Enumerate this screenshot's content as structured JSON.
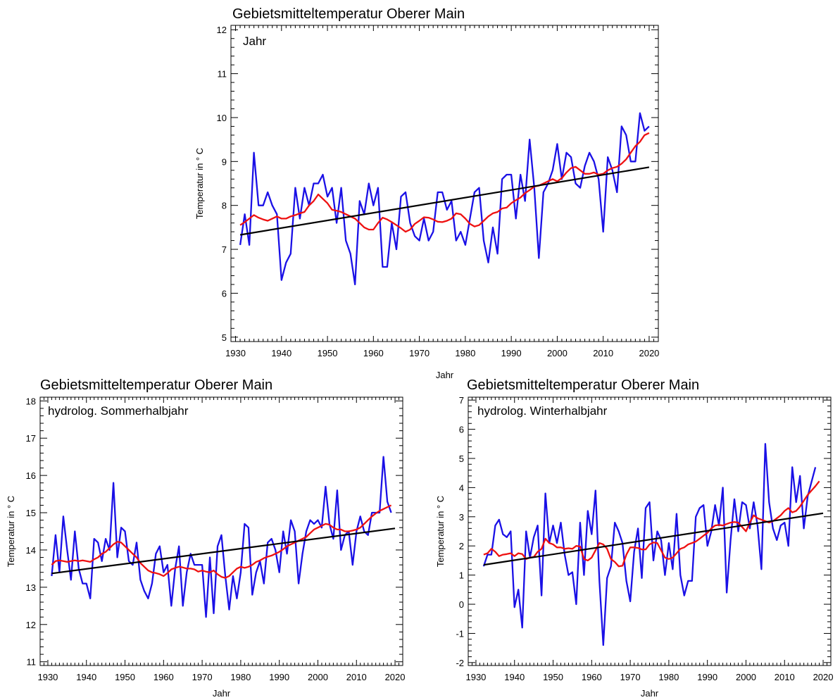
{
  "chart_data": [
    {
      "id": "annual",
      "type": "line",
      "title": "Gebietsmitteltemperatur Oberer Main",
      "panel_label": "Jahr",
      "xlabel": "Jahr",
      "ylabel": "Temperatur in ° C",
      "xlim": [
        1929,
        2022
      ],
      "ylim": [
        4.9,
        12.1
      ],
      "xticks": [
        1930,
        1940,
        1950,
        1960,
        1970,
        1980,
        1990,
        2000,
        2010,
        2020
      ],
      "yticks": [
        5,
        6,
        7,
        8,
        9,
        10,
        11,
        12
      ],
      "grid": false,
      "series": [
        {
          "role": "annual",
          "color": "#1a10e6",
          "x_start": 1931,
          "values": [
            7.1,
            7.8,
            7.1,
            9.2,
            8.0,
            8.0,
            8.3,
            8.0,
            7.8,
            6.3,
            6.7,
            6.9,
            8.4,
            7.7,
            8.4,
            8.0,
            8.5,
            8.5,
            8.7,
            8.2,
            8.4,
            7.6,
            8.4,
            7.2,
            6.9,
            6.2,
            8.1,
            7.8,
            8.5,
            8.0,
            8.4,
            6.6,
            6.6,
            7.6,
            7.0,
            8.2,
            8.3,
            7.6,
            7.3,
            7.2,
            7.7,
            7.2,
            7.4,
            8.3,
            8.3,
            7.9,
            8.1,
            7.2,
            7.4,
            7.1,
            7.7,
            8.3,
            8.4,
            7.2,
            6.7,
            7.5,
            6.9,
            8.6,
            8.7,
            8.7,
            7.7,
            8.7,
            8.1,
            9.5,
            8.4,
            6.8,
            8.3,
            8.5,
            8.8,
            9.4,
            8.6,
            9.2,
            9.1,
            8.5,
            8.4,
            8.9,
            9.2,
            9.0,
            8.6,
            7.4,
            9.1,
            8.8,
            8.3,
            9.8,
            9.6,
            9.0,
            9.0,
            10.1,
            9.7,
            9.8
          ]
        },
        {
          "role": "moving-average",
          "color": "#ee1111",
          "x_start": 1931,
          "values": [
            7.55,
            7.62,
            7.7,
            7.78,
            7.72,
            7.68,
            7.65,
            7.7,
            7.75,
            7.7,
            7.7,
            7.75,
            7.78,
            7.82,
            7.85,
            8.0,
            8.1,
            8.25,
            8.15,
            8.05,
            7.9,
            7.88,
            7.85,
            7.8,
            7.75,
            7.7,
            7.6,
            7.5,
            7.45,
            7.45,
            7.6,
            7.72,
            7.68,
            7.62,
            7.55,
            7.48,
            7.4,
            7.45,
            7.58,
            7.65,
            7.73,
            7.72,
            7.68,
            7.63,
            7.62,
            7.65,
            7.7,
            7.82,
            7.8,
            7.7,
            7.58,
            7.52,
            7.55,
            7.65,
            7.75,
            7.82,
            7.85,
            7.93,
            7.95,
            8.05,
            8.12,
            8.18,
            8.28,
            8.35,
            8.43,
            8.45,
            8.5,
            8.55,
            8.6,
            8.55,
            8.62,
            8.75,
            8.85,
            8.88,
            8.8,
            8.72,
            8.72,
            8.75,
            8.7,
            8.72,
            8.8,
            8.85,
            8.88,
            8.95,
            9.05,
            9.2,
            9.35,
            9.45,
            9.6,
            9.65
          ]
        },
        {
          "role": "linear-trend",
          "color": "#000000",
          "x": [
            1931,
            2020
          ],
          "y": [
            7.33,
            8.87
          ]
        }
      ]
    },
    {
      "id": "summer",
      "type": "line",
      "title": "Gebietsmitteltemperatur Oberer Main",
      "panel_label": "hydrolog. Sommerhalbjahr",
      "xlabel": "Jahr",
      "ylabel": "Temperatur in ° C",
      "xlim": [
        1928,
        2022
      ],
      "ylim": [
        10.9,
        18.1
      ],
      "xticks": [
        1930,
        1940,
        1950,
        1960,
        1970,
        1980,
        1990,
        2000,
        2010,
        2020
      ],
      "yticks": [
        11,
        12,
        13,
        14,
        15,
        16,
        17,
        18
      ],
      "grid": false,
      "series": [
        {
          "role": "annual",
          "color": "#1a10e6",
          "x_start": 1931,
          "values": [
            13.3,
            14.4,
            13.4,
            14.9,
            14.0,
            13.2,
            14.5,
            13.5,
            13.1,
            13.1,
            12.7,
            14.3,
            14.2,
            13.7,
            14.3,
            14.0,
            15.8,
            13.8,
            14.6,
            14.5,
            13.7,
            13.6,
            14.2,
            13.2,
            12.9,
            12.7,
            13.1,
            13.9,
            14.1,
            13.4,
            13.6,
            12.5,
            13.5,
            14.1,
            12.5,
            13.4,
            13.9,
            13.6,
            13.6,
            13.6,
            12.2,
            13.8,
            12.3,
            14.1,
            14.4,
            13.3,
            12.4,
            13.3,
            12.7,
            13.4,
            14.7,
            14.6,
            12.8,
            13.4,
            13.7,
            13.1,
            14.2,
            14.3,
            14.0,
            13.4,
            14.5,
            13.9,
            14.8,
            14.5,
            13.1,
            13.9,
            14.5,
            14.8,
            14.7,
            14.8,
            14.6,
            15.7,
            14.7,
            14.3,
            15.6,
            14.0,
            14.4,
            14.5,
            13.6,
            14.5,
            14.9,
            14.5,
            14.4,
            15.0,
            15.0,
            15.0,
            16.5,
            15.3,
            15.0
          ]
        },
        {
          "role": "moving-average",
          "color": "#ee1111",
          "x_start": 1931,
          "values": [
            13.6,
            13.7,
            13.72,
            13.7,
            13.68,
            13.7,
            13.72,
            13.7,
            13.72,
            13.7,
            13.68,
            13.75,
            13.8,
            13.9,
            13.95,
            14.05,
            14.15,
            14.22,
            14.2,
            14.1,
            14.0,
            13.9,
            13.8,
            13.65,
            13.55,
            13.45,
            13.4,
            13.38,
            13.35,
            13.3,
            13.38,
            13.48,
            13.52,
            13.55,
            13.53,
            13.5,
            13.5,
            13.48,
            13.42,
            13.45,
            13.42,
            13.4,
            13.45,
            13.35,
            13.28,
            13.25,
            13.3,
            13.4,
            13.5,
            13.55,
            13.52,
            13.55,
            13.6,
            13.68,
            13.72,
            13.78,
            13.82,
            13.85,
            13.9,
            13.95,
            14.02,
            14.1,
            14.15,
            14.2,
            14.25,
            14.3,
            14.35,
            14.45,
            14.55,
            14.6,
            14.65,
            14.7,
            14.68,
            14.6,
            14.55,
            14.55,
            14.5,
            14.5,
            14.52,
            14.55,
            14.6,
            14.7,
            14.8,
            14.9,
            14.98,
            15.05,
            15.1,
            15.15,
            15.2
          ]
        },
        {
          "role": "linear-trend",
          "color": "#000000",
          "x": [
            1931,
            2020
          ],
          "y": [
            13.37,
            14.58
          ]
        }
      ]
    },
    {
      "id": "winter",
      "type": "line",
      "title": "Gebietsmitteltemperatur Oberer Main",
      "panel_label": "hydrolog. Winterhalbjahr",
      "xlabel": "Jahr",
      "ylabel": "Temperatur in ° C",
      "xlim": [
        1928,
        2022
      ],
      "ylim": [
        -2.1,
        7.1
      ],
      "xticks": [
        1930,
        1940,
        1950,
        1960,
        1970,
        1980,
        1990,
        2000,
        2010,
        2020
      ],
      "yticks": [
        -2,
        -1,
        0,
        1,
        2,
        3,
        4,
        5,
        6,
        7
      ],
      "grid": false,
      "series": [
        {
          "role": "annual",
          "color": "#1a10e6",
          "x_start": 1932,
          "values": [
            1.3,
            1.7,
            1.7,
            2.7,
            2.9,
            2.4,
            2.3,
            2.5,
            -0.1,
            0.5,
            -0.8,
            2.5,
            1.6,
            2.3,
            2.7,
            0.3,
            3.8,
            2.1,
            2.7,
            2.1,
            2.8,
            1.7,
            1.0,
            1.1,
            0.0,
            2.8,
            1.0,
            3.2,
            2.4,
            3.9,
            0.8,
            -1.4,
            0.9,
            1.3,
            2.8,
            2.5,
            2.1,
            0.8,
            0.1,
            1.8,
            2.6,
            0.9,
            3.3,
            3.5,
            1.5,
            2.5,
            2.2,
            1.0,
            2.1,
            1.2,
            3.1,
            1.0,
            0.3,
            0.8,
            0.8,
            3.0,
            3.3,
            3.4,
            2.0,
            2.5,
            3.4,
            2.7,
            4.0,
            0.4,
            2.2,
            3.6,
            2.5,
            3.5,
            3.4,
            2.6,
            3.5,
            2.7,
            1.2,
            5.5,
            3.5,
            2.6,
            2.2,
            2.7,
            2.8,
            2.0,
            4.7,
            3.5,
            4.4,
            2.6,
            3.7,
            4.2,
            4.7
          ]
        },
        {
          "role": "moving-average",
          "color": "#ee1111",
          "x_start": 1932,
          "values": [
            1.7,
            1.75,
            1.9,
            1.8,
            1.65,
            1.7,
            1.72,
            1.75,
            1.65,
            1.75,
            1.72,
            1.55,
            1.6,
            1.62,
            1.8,
            1.9,
            2.25,
            2.1,
            2.05,
            1.95,
            1.95,
            1.9,
            1.92,
            1.9,
            2.0,
            1.98,
            1.55,
            1.5,
            1.6,
            1.85,
            2.1,
            2.05,
            1.9,
            1.55,
            1.45,
            1.3,
            1.32,
            1.7,
            1.95,
            1.95,
            1.93,
            1.88,
            1.88,
            2.05,
            2.12,
            2.1,
            1.85,
            1.6,
            1.55,
            1.6,
            1.75,
            1.9,
            1.95,
            2.05,
            2.1,
            2.15,
            2.25,
            2.35,
            2.45,
            2.6,
            2.7,
            2.72,
            2.7,
            2.75,
            2.8,
            2.82,
            2.8,
            2.65,
            2.5,
            2.8,
            3.05,
            2.95,
            2.9,
            2.85,
            2.8,
            2.85,
            2.95,
            3.05,
            3.2,
            3.3,
            3.15,
            3.2,
            3.35,
            3.55,
            3.75,
            3.9,
            4.05,
            4.22
          ]
        },
        {
          "role": "linear-trend",
          "color": "#000000",
          "x": [
            1932,
            2020
          ],
          "y": [
            1.35,
            3.12
          ]
        }
      ]
    }
  ]
}
